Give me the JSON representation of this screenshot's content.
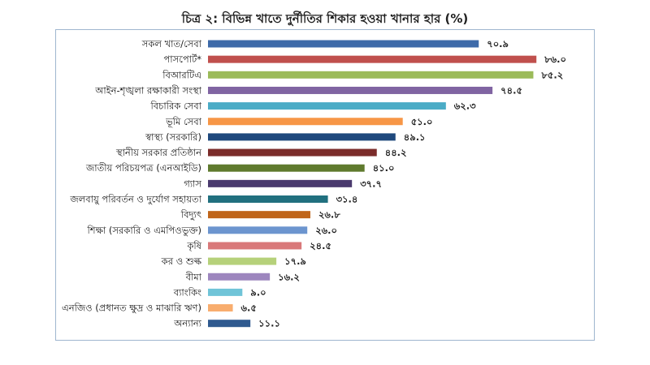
{
  "chart_data": {
    "type": "bar",
    "orientation": "horizontal",
    "title": "চিত্র ২: বিভিন্ন খাতে দুর্নীতির শিকার হওয়া খানার হার (%)",
    "xlabel": "",
    "ylabel": "",
    "xlim": [
      0,
      90
    ],
    "grid": false,
    "categories": [
      "সকল খাত/সেবা",
      "পাসপোর্ট*",
      "বিআরটিএ",
      "আইন-শৃঙ্খলা রক্ষাকারী সংস্থা",
      "বিচারিক সেবা",
      "ভূমি সেবা",
      "স্বাস্থ্য (সরকারি)",
      "স্থানীয় সরকার প্রতিষ্ঠান",
      "জাতীয় পরিচয়পত্র (এনআইডি)",
      "গ্যাস",
      "জলবায়ু পরিবর্তন ও দুর্যোগ সহায়তা",
      "বিদ্যুৎ",
      "শিক্ষা (সরকারি ও এমপিওভুক্ত)",
      "কৃষি",
      "কর ও শুল্ক",
      "বীমা",
      "ব্যাংকিং",
      "এনজিও (প্রধানত ক্ষুদ্র ও মাঝারি ঋণ)",
      "অন্যান্য"
    ],
    "values": [
      70.9,
      86.0,
      85.2,
      74.5,
      62.3,
      51.0,
      49.1,
      44.2,
      41.0,
      37.7,
      31.4,
      26.8,
      26.0,
      24.5,
      17.9,
      16.2,
      9.0,
      6.5,
      11.1
    ],
    "value_labels": [
      "৭০.৯",
      "৮৬.০",
      "৮৫.২",
      "৭৪.৫",
      "৬২.৩",
      "৫১.০",
      "৪৯.১",
      "৪৪.২",
      "৪১.০",
      "৩৭.৭",
      "৩১.৪",
      "২৬.৮",
      "২৬.০",
      "২৪.৫",
      "১৭.৯",
      "১৬.২",
      "৯.০",
      "৬.৫",
      "১১.১"
    ],
    "colors": [
      "#3e6aa9",
      "#c0504d",
      "#9bbb59",
      "#8064a2",
      "#4bacc6",
      "#f79646",
      "#1f497d",
      "#7b2c2a",
      "#5f7a2e",
      "#4a3a6e",
      "#21707f",
      "#c0651a",
      "#6c95cf",
      "#d9797a",
      "#b6d17a",
      "#9d86be",
      "#70c4d8",
      "#f8ad6e",
      "#2f5a8f"
    ]
  }
}
